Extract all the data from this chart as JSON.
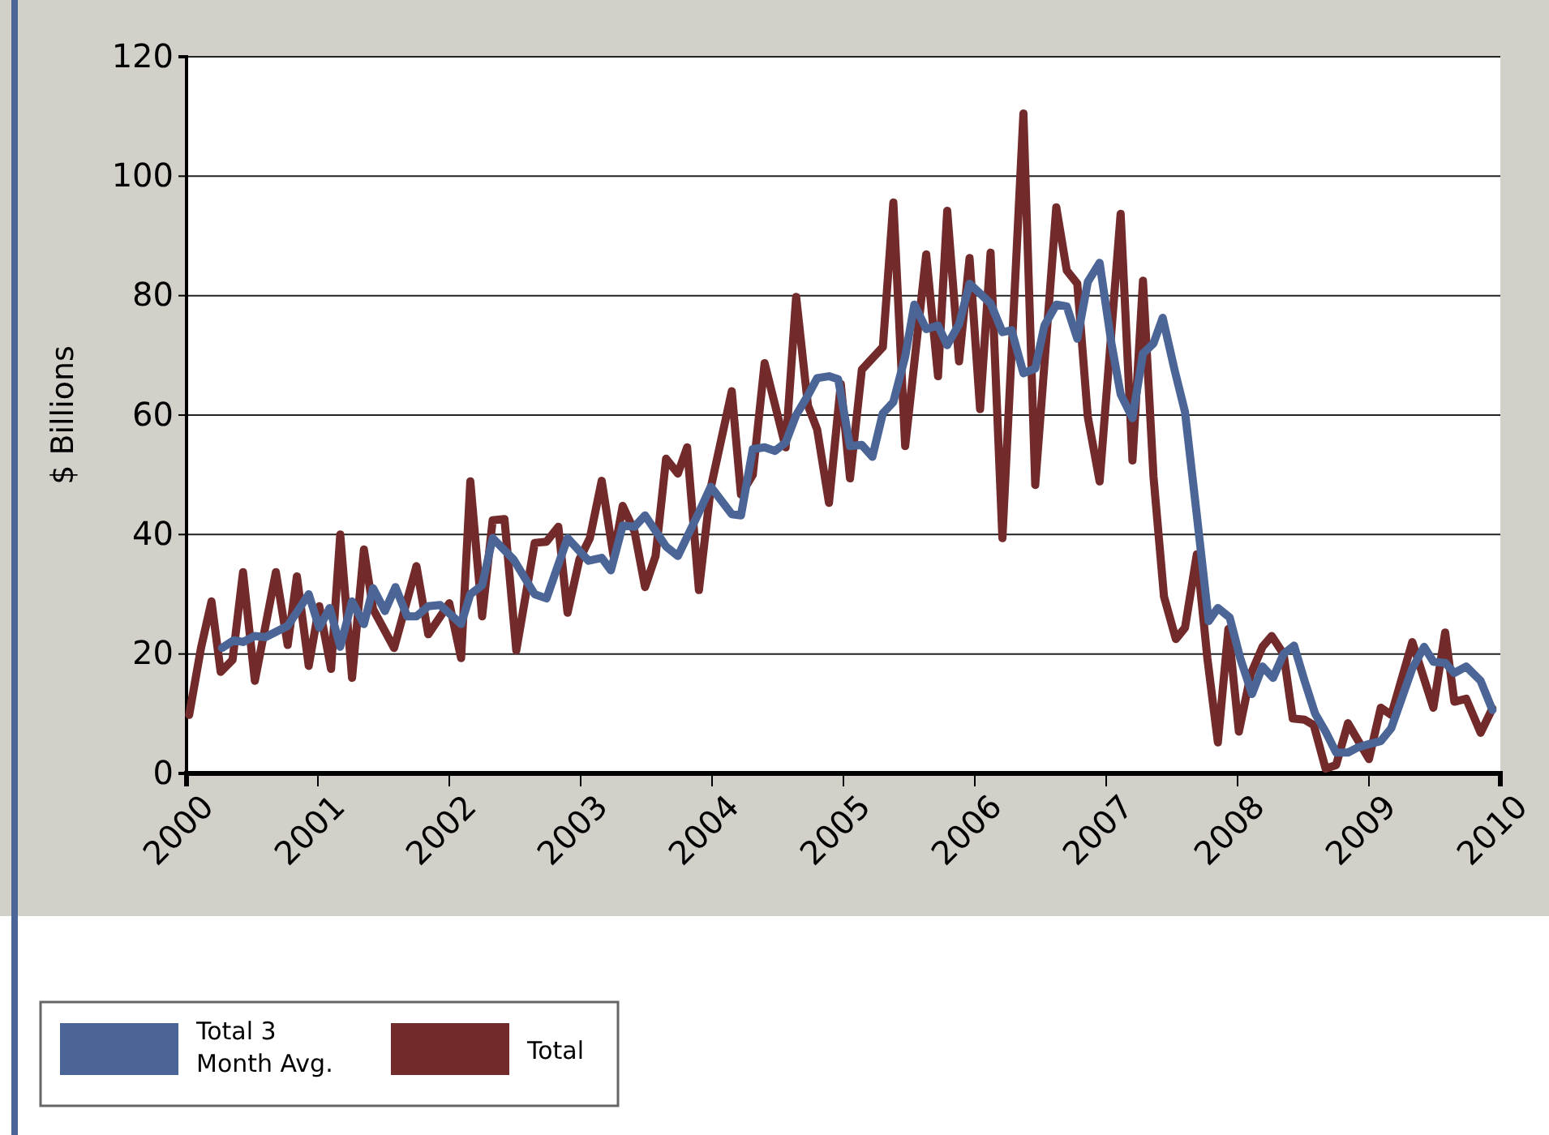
{
  "chart_data": {
    "type": "line",
    "ylabel": "$ Billions",
    "xlim": [
      2000,
      2010
    ],
    "xticks": [
      2000,
      2001,
      2002,
      2003,
      2004,
      2005,
      2006,
      2007,
      2008,
      2009,
      2010
    ],
    "ylim": [
      0,
      120
    ],
    "yticks": [
      0,
      20,
      40,
      60,
      80,
      100,
      120
    ],
    "grid": "y",
    "legend": "bottom left",
    "line_style": "solid",
    "marker": "none",
    "series": [
      {
        "name": "Total 3 Month Avg.",
        "color": "#4a6596",
        "x": [
          2000.27,
          2000.36,
          2000.43,
          2000.52,
          2000.6,
          2000.77,
          2000.93,
          2001.01,
          2001.09,
          2001.17,
          2001.26,
          2001.35,
          2001.42,
          2001.51,
          2001.59,
          2001.68,
          2001.75,
          2001.84,
          2001.93,
          2002.09,
          2002.16,
          2002.25,
          2002.33,
          2002.49,
          2002.65,
          2002.74,
          2002.9,
          2003.06,
          2003.16,
          2003.23,
          2003.32,
          2003.41,
          2003.49,
          2003.65,
          2003.74,
          2003.9,
          2003.99,
          2004.15,
          2004.22,
          2004.31,
          2004.4,
          2004.48,
          2004.56,
          2004.64,
          2004.73,
          2004.8,
          2004.89,
          2004.96,
          2005.05,
          2005.14,
          2005.22,
          2005.3,
          2005.38,
          2005.47,
          2005.54,
          2005.63,
          2005.72,
          2005.79,
          2005.88,
          2005.96,
          2006.12,
          2006.21,
          2006.28,
          2006.37,
          2006.46,
          2006.53,
          2006.62,
          2006.7,
          2006.78,
          2006.86,
          2006.95,
          2007.04,
          2007.11,
          2007.2,
          2007.28,
          2007.36,
          2007.43,
          2007.52,
          2007.6,
          2007.69,
          2007.78,
          2007.85,
          2007.94,
          2008.02,
          2008.11,
          2008.19,
          2008.27,
          2008.35,
          2008.43,
          2008.51,
          2008.59,
          2008.67,
          2008.75,
          2008.84,
          2008.91,
          2009.0,
          2009.09,
          2009.17,
          2009.33,
          2009.42,
          2009.49,
          2009.58,
          2009.65,
          2009.74,
          2009.85,
          2009.94
        ],
        "values": [
          21,
          22.3,
          22,
          23,
          22.8,
          24.7,
          30,
          24.4,
          27.7,
          21.2,
          28.8,
          25,
          31,
          27.2,
          31.2,
          26.3,
          26.3,
          28,
          28.2,
          25,
          30,
          31.5,
          39.4,
          35.8,
          30,
          29.3,
          39.4,
          35.6,
          36.1,
          34,
          41.5,
          41.3,
          43.2,
          38,
          36.4,
          43.7,
          48,
          43.4,
          43.2,
          54.3,
          54.6,
          54,
          55.4,
          60,
          63.3,
          66.2,
          66.5,
          66,
          54.8,
          55,
          53,
          60.3,
          62.2,
          69.8,
          78.5,
          74.4,
          75,
          71.7,
          75.2,
          82,
          78.7,
          73.9,
          74.2,
          67,
          67.8,
          75,
          78.5,
          78.2,
          72.8,
          82.3,
          85.5,
          72,
          63.5,
          59.5,
          70.3,
          72,
          76.3,
          67.6,
          60.5,
          43.2,
          25.5,
          27.7,
          26.1,
          19.3,
          13.3,
          17.9,
          16,
          20,
          21.4,
          15.5,
          10,
          7,
          3.5,
          3.5,
          4.3,
          4.9,
          5.4,
          7.6,
          17.6,
          21.2,
          18.7,
          18.5,
          16.8,
          17.9,
          15.5,
          10.6
        ]
      },
      {
        "name": "Total",
        "color": "#722a2a",
        "x": [
          2000.02,
          2000.11,
          2000.19,
          2000.26,
          2000.35,
          2000.43,
          2000.52,
          2000.68,
          2000.77,
          2000.84,
          2000.93,
          2001.01,
          2001.1,
          2001.17,
          2001.26,
          2001.35,
          2001.42,
          2001.58,
          2001.75,
          2001.84,
          2002.0,
          2002.09,
          2002.16,
          2002.25,
          2002.33,
          2002.42,
          2002.51,
          2002.65,
          2002.74,
          2002.83,
          2002.9,
          2002.99,
          2003.07,
          2003.16,
          2003.25,
          2003.32,
          2003.41,
          2003.49,
          2003.57,
          2003.65,
          2003.74,
          2003.81,
          2003.9,
          2003.99,
          2004.15,
          2004.22,
          2004.31,
          2004.4,
          2004.56,
          2004.64,
          2004.73,
          2004.8,
          2004.89,
          2004.98,
          2005.05,
          2005.14,
          2005.3,
          2005.38,
          2005.47,
          2005.63,
          2005.72,
          2005.79,
          2005.88,
          2005.96,
          2006.04,
          2006.12,
          2006.21,
          2006.37,
          2006.46,
          2006.62,
          2006.7,
          2006.78,
          2006.86,
          2006.95,
          2007.11,
          2007.2,
          2007.28,
          2007.36,
          2007.44,
          2007.53,
          2007.6,
          2007.69,
          2007.77,
          2007.85,
          2007.93,
          2008.01,
          2008.1,
          2008.19,
          2008.26,
          2008.35,
          2008.42,
          2008.51,
          2008.58,
          2008.67,
          2008.75,
          2008.84,
          2009.0,
          2009.09,
          2009.17,
          2009.33,
          2009.49,
          2009.58,
          2009.65,
          2009.74,
          2009.85,
          2009.94
        ],
        "values": [
          9.8,
          21,
          28.8,
          17,
          19,
          33.7,
          15.5,
          33.7,
          21.5,
          33,
          18,
          28,
          17.5,
          40,
          16,
          37.5,
          27.5,
          21,
          34.7,
          23.3,
          28.5,
          19.3,
          48.9,
          26.3,
          42.4,
          42.6,
          20.6,
          38.6,
          38.8,
          41.3,
          26.9,
          35.8,
          39.4,
          49,
          36.4,
          44.8,
          40.5,
          31.2,
          36.4,
          52.7,
          50.2,
          54.6,
          30.7,
          47.8,
          64,
          46.7,
          50,
          68.7,
          54.6,
          79.8,
          61.6,
          57.6,
          45.3,
          65.2,
          49.4,
          67.6,
          71.4,
          95.6,
          54.8,
          86.9,
          66.5,
          94.2,
          69,
          86.3,
          61,
          87.2,
          39.4,
          110.5,
          48.3,
          94.8,
          84.2,
          82,
          59.7,
          48.9,
          93.7,
          52.4,
          82.5,
          49.7,
          29.6,
          22.5,
          24.4,
          36.7,
          19.3,
          5.2,
          24.2,
          7,
          16.6,
          21.2,
          23,
          20,
          9.2,
          9,
          8.1,
          0.8,
          1.4,
          8.4,
          2.4,
          11,
          9.8,
          22,
          11,
          23.6,
          12,
          12.5,
          6.8,
          10.9
        ]
      }
    ]
  }
}
